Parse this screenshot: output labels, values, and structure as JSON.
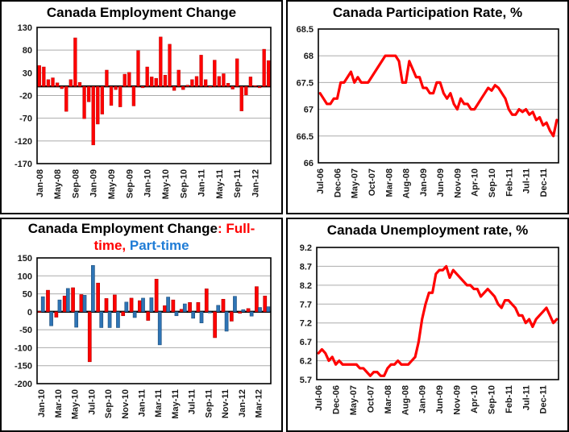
{
  "colors": {
    "series_red": "#FF0000",
    "series_red_border": "#B00000",
    "series_blue": "#2E74B5",
    "series_blue_border": "#1F4E79",
    "title_blue": "#1F7CD6",
    "grid_gray": "#ABABAB",
    "axis_black": "#000000"
  },
  "chart_data": [
    {
      "id": "employment-change",
      "type": "bar",
      "title": "Canada Employment Change",
      "bar_color": "#FF0000",
      "ylim": [
        -170,
        130
      ],
      "yticks": [
        "130",
        "80",
        "30",
        "-20",
        "-70",
        "-120",
        "-170"
      ],
      "grid": true,
      "xtick_every": 4,
      "xtick_labels": [
        "Jan-08",
        "May-08",
        "Sep-08",
        "Jan-09",
        "May-09",
        "Sep-09",
        "Jan-10",
        "May-10",
        "Sep-10",
        "Jan-11",
        "May-11",
        "Sep-11",
        "Jan-12"
      ],
      "categories": [
        "Jan-08",
        "Feb-08",
        "Mar-08",
        "Apr-08",
        "May-08",
        "Jun-08",
        "Jul-08",
        "Aug-08",
        "Sep-08",
        "Oct-08",
        "Nov-08",
        "Dec-08",
        "Jan-09",
        "Feb-09",
        "Mar-09",
        "Apr-09",
        "May-09",
        "Jun-09",
        "Jul-09",
        "Aug-09",
        "Sep-09",
        "Oct-09",
        "Nov-09",
        "Dec-09",
        "Jan-10",
        "Feb-10",
        "Mar-10",
        "Apr-10",
        "May-10",
        "Jun-10",
        "Jul-10",
        "Aug-10",
        "Sep-10",
        "Oct-10",
        "Nov-10",
        "Dec-10",
        "Jan-11",
        "Feb-11",
        "Mar-11",
        "Apr-11",
        "May-11",
        "Jun-11",
        "Jul-11",
        "Aug-11",
        "Sep-11",
        "Oct-11",
        "Nov-11",
        "Dec-11",
        "Jan-12",
        "Feb-12",
        "Mar-12",
        "Apr-12"
      ],
      "values": [
        46,
        43,
        15,
        19,
        8,
        -5,
        -55,
        15,
        107,
        9,
        -71,
        -34,
        -129,
        -83,
        -61,
        36,
        -42,
        -7,
        -45,
        27,
        31,
        -43,
        79,
        -3,
        43,
        21,
        18,
        109,
        25,
        93,
        -9,
        36,
        -7,
        3,
        15,
        22,
        69,
        15,
        -2,
        58,
        22,
        28,
        7,
        -6,
        61,
        -54,
        -19,
        21,
        2,
        -3,
        82,
        57
      ]
    },
    {
      "id": "participation-rate",
      "type": "line",
      "title": "Canada Participation Rate, %",
      "line_color": "#FF0000",
      "ylim": [
        66,
        68.5
      ],
      "yticks": [
        "68.5",
        "68",
        "67.5",
        "67",
        "66.5",
        "66"
      ],
      "grid": true,
      "xtick_every": 5,
      "xtick_labels": [
        "Jul-06",
        "Dec-06",
        "May-07",
        "Oct-07",
        "Mar-08",
        "Aug-08",
        "Jan-09",
        "Jun-09",
        "Nov-09",
        "Apr-10",
        "Sep-10",
        "Feb-11",
        "Jul-11",
        "Dec-11"
      ],
      "categories": [
        "Jul-06",
        "Aug-06",
        "Sep-06",
        "Oct-06",
        "Nov-06",
        "Dec-06",
        "Jan-07",
        "Feb-07",
        "Mar-07",
        "Apr-07",
        "May-07",
        "Jun-07",
        "Jul-07",
        "Aug-07",
        "Sep-07",
        "Oct-07",
        "Nov-07",
        "Dec-07",
        "Jan-08",
        "Feb-08",
        "Mar-08",
        "Apr-08",
        "May-08",
        "Jun-08",
        "Jul-08",
        "Aug-08",
        "Sep-08",
        "Oct-08",
        "Nov-08",
        "Dec-08",
        "Jan-09",
        "Feb-09",
        "Mar-09",
        "Apr-09",
        "May-09",
        "Jun-09",
        "Jul-09",
        "Aug-09",
        "Sep-09",
        "Oct-09",
        "Nov-09",
        "Dec-09",
        "Jan-10",
        "Feb-10",
        "Mar-10",
        "Apr-10",
        "May-10",
        "Jun-10",
        "Jul-10",
        "Aug-10",
        "Sep-10",
        "Oct-10",
        "Nov-10",
        "Dec-10",
        "Jan-11",
        "Feb-11",
        "Mar-11",
        "Apr-11",
        "May-11",
        "Jun-11",
        "Jul-11",
        "Aug-11",
        "Sep-11",
        "Oct-11",
        "Nov-11",
        "Dec-11",
        "Jan-12",
        "Feb-12",
        "Mar-12",
        "Apr-12"
      ],
      "values": [
        67.3,
        67.2,
        67.1,
        67.1,
        67.2,
        67.2,
        67.5,
        67.5,
        67.6,
        67.7,
        67.5,
        67.6,
        67.5,
        67.5,
        67.5,
        67.6,
        67.7,
        67.8,
        67.9,
        68.0,
        68.0,
        68.0,
        68.0,
        67.9,
        67.5,
        67.5,
        67.9,
        67.75,
        67.6,
        67.6,
        67.4,
        67.4,
        67.3,
        67.3,
        67.5,
        67.5,
        67.3,
        67.2,
        67.3,
        67.1,
        67.0,
        67.2,
        67.1,
        67.1,
        67.0,
        67.0,
        67.1,
        67.2,
        67.3,
        67.4,
        67.35,
        67.45,
        67.4,
        67.3,
        67.2,
        67.0,
        66.9,
        66.9,
        67.0,
        66.95,
        67.0,
        66.9,
        66.95,
        66.8,
        66.85,
        66.7,
        66.75,
        66.6,
        66.5,
        66.8
      ]
    },
    {
      "id": "employment-ftpt",
      "type": "grouped-bar",
      "title_lines": [
        [
          {
            "text": "Canada Employment Change",
            "color": "#000000"
          },
          {
            "text": ": Full-",
            "color": "#FF0000"
          }
        ],
        [
          {
            "text": "time",
            "color": "#FF0000"
          },
          {
            "text": ", ",
            "color": "#FF0000"
          },
          {
            "text": "Part-time",
            "color": "#1F7CD6"
          }
        ]
      ],
      "ylim": [
        -200,
        150
      ],
      "yticks": [
        "150",
        "100",
        "50",
        "0",
        "-50",
        "-100",
        "-150",
        "-200"
      ],
      "grid": true,
      "xtick_every": 2,
      "xtick_labels": [
        "Jan-10",
        "Mar-10",
        "May-10",
        "Jul-10",
        "Sep-10",
        "Nov-10",
        "Jan-11",
        "Mar-11",
        "May-11",
        "Jul-11",
        "Sep-11",
        "Nov-11",
        "Jan-12",
        "Mar-12"
      ],
      "categories": [
        "Jan-10",
        "Feb-10",
        "Mar-10",
        "Apr-10",
        "May-10",
        "Jun-10",
        "Jul-10",
        "Aug-10",
        "Sep-10",
        "Oct-10",
        "Nov-10",
        "Dec-10",
        "Jan-11",
        "Feb-11",
        "Mar-11",
        "Apr-11",
        "May-11",
        "Jun-11",
        "Jul-11",
        "Aug-11",
        "Sep-11",
        "Oct-11",
        "Nov-11",
        "Dec-11",
        "Jan-12",
        "Feb-12",
        "Mar-12",
        "Apr-12"
      ],
      "series": [
        {
          "name": "Full-time",
          "color": "#FF0000",
          "border": "#B00000",
          "values": [
            1,
            60,
            -15,
            44,
            67,
            48,
            -139,
            80,
            37,
            47,
            -11,
            38,
            31,
            -24,
            91,
            17,
            33,
            7,
            26,
            26,
            64,
            -72,
            35,
            -26,
            -4,
            9,
            70,
            44
          ]
        },
        {
          "name": "Part-time",
          "color": "#2E74B5",
          "border": "#1F4E79",
          "values": [
            42,
            -39,
            33,
            65,
            -43,
            46,
            129,
            -44,
            -44,
            -44,
            27,
            -16,
            38,
            39,
            -92,
            41,
            -11,
            22,
            -18,
            -31,
            -3,
            18,
            -54,
            43,
            6,
            -12,
            12,
            14
          ]
        }
      ]
    },
    {
      "id": "unemployment-rate",
      "type": "line",
      "title": "Canada Unemployment rate, %",
      "line_color": "#FF0000",
      "ylim": [
        5.7,
        9.2
      ],
      "yticks": [
        "9.2",
        "8.7",
        "8.2",
        "7.7",
        "7.2",
        "6.7",
        "6.2",
        "5.7"
      ],
      "grid": true,
      "xtick_every": 5,
      "xtick_labels": [
        "Jul-06",
        "Dec-06",
        "May-07",
        "Oct-07",
        "Mar-08",
        "Aug-08",
        "Jan-09",
        "Jun-09",
        "Nov-09",
        "Apr-10",
        "Sep-10",
        "Feb-11",
        "Jul-11",
        "Dec-11"
      ],
      "categories": [
        "Jul-06",
        "Aug-06",
        "Sep-06",
        "Oct-06",
        "Nov-06",
        "Dec-06",
        "Jan-07",
        "Feb-07",
        "Mar-07",
        "Apr-07",
        "May-07",
        "Jun-07",
        "Jul-07",
        "Aug-07",
        "Sep-07",
        "Oct-07",
        "Nov-07",
        "Dec-07",
        "Jan-08",
        "Feb-08",
        "Mar-08",
        "Apr-08",
        "May-08",
        "Jun-08",
        "Jul-08",
        "Aug-08",
        "Sep-08",
        "Oct-08",
        "Nov-08",
        "Dec-08",
        "Jan-09",
        "Feb-09",
        "Mar-09",
        "Apr-09",
        "May-09",
        "Jun-09",
        "Jul-09",
        "Aug-09",
        "Sep-09",
        "Oct-09",
        "Nov-09",
        "Dec-09",
        "Jan-10",
        "Feb-10",
        "Mar-10",
        "Apr-10",
        "May-10",
        "Jun-10",
        "Jul-10",
        "Aug-10",
        "Sep-10",
        "Oct-10",
        "Nov-10",
        "Dec-10",
        "Jan-11",
        "Feb-11",
        "Mar-11",
        "Apr-11",
        "May-11",
        "Jun-11",
        "Jul-11",
        "Aug-11",
        "Sep-11",
        "Oct-11",
        "Nov-11",
        "Dec-11",
        "Jan-12",
        "Feb-12",
        "Mar-12",
        "Apr-12"
      ],
      "values": [
        6.4,
        6.5,
        6.4,
        6.2,
        6.3,
        6.1,
        6.2,
        6.1,
        6.1,
        6.1,
        6.1,
        6.1,
        6.0,
        6.0,
        5.9,
        5.8,
        5.9,
        5.9,
        5.8,
        5.8,
        6.0,
        6.1,
        6.1,
        6.2,
        6.1,
        6.1,
        6.1,
        6.2,
        6.3,
        6.7,
        7.3,
        7.7,
        8.0,
        8.0,
        8.5,
        8.6,
        8.6,
        8.7,
        8.4,
        8.6,
        8.5,
        8.4,
        8.3,
        8.2,
        8.2,
        8.1,
        8.1,
        7.9,
        8.0,
        8.1,
        8.0,
        7.9,
        7.7,
        7.6,
        7.8,
        7.8,
        7.7,
        7.6,
        7.4,
        7.4,
        7.2,
        7.3,
        7.1,
        7.3,
        7.4,
        7.5,
        7.6,
        7.4,
        7.2,
        7.3
      ]
    }
  ]
}
